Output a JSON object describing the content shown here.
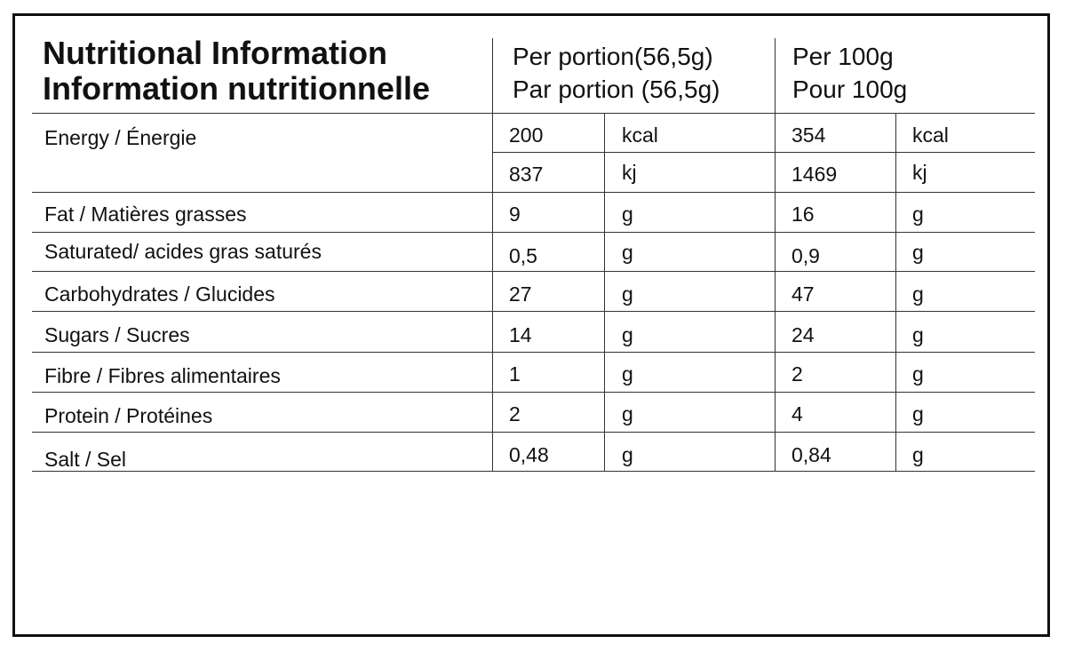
{
  "header": {
    "title_en": "Nutritional Information",
    "title_fr": "Information nutritionnelle",
    "per_portion_en": "Per portion(56,5g)",
    "per_portion_fr": "Par portion (56,5g)",
    "per_100g_en": "Per 100g",
    "per_100g_fr": "Pour 100g"
  },
  "rows": [
    {
      "label": "Energy / Énergie",
      "portion": "200",
      "portion_unit": "kcal",
      "per100": "354",
      "per100_unit": "kcal"
    },
    {
      "label": "",
      "portion": "837",
      "portion_unit": "kj",
      "per100": "1469",
      "per100_unit": "kj"
    },
    {
      "label": "Fat / Matières grasses",
      "portion": "9",
      "portion_unit": "g",
      "per100": "16",
      "per100_unit": "g"
    },
    {
      "label": "Saturated/ acides gras saturés",
      "portion": "0,5",
      "portion_unit": "g",
      "per100": "0,9",
      "per100_unit": "g"
    },
    {
      "label": "Carbohydrates / Glucides",
      "portion": "27",
      "portion_unit": "g",
      "per100": "47",
      "per100_unit": "g"
    },
    {
      "label": "Sugars / Sucres",
      "portion": "14",
      "portion_unit": "g",
      "per100": "24",
      "per100_unit": "g"
    },
    {
      "label": "Fibre / Fibres alimentaires",
      "portion": "1",
      "portion_unit": "g",
      "per100": "2",
      "per100_unit": "g"
    },
    {
      "label": "Protein / Protéines",
      "portion": "2",
      "portion_unit": "g",
      "per100": "4",
      "per100_unit": "g"
    },
    {
      "label": "Salt / Sel",
      "portion": "0,48",
      "portion_unit": "g",
      "per100": "0,84",
      "per100_unit": "g"
    }
  ]
}
